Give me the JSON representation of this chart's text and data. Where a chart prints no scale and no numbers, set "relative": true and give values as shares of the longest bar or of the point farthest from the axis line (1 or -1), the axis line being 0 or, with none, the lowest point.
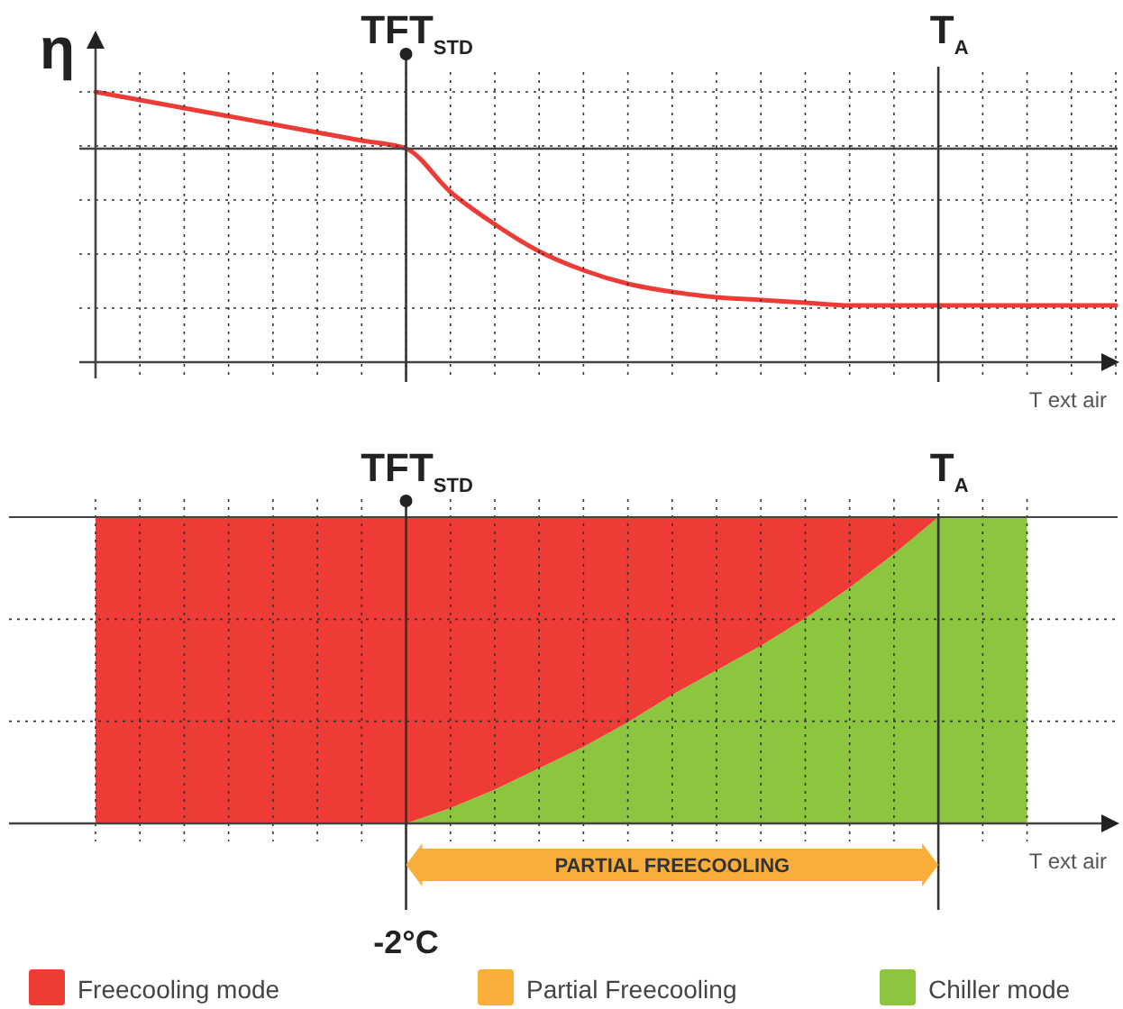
{
  "chart_data": [
    {
      "type": "line",
      "ylabel": "η",
      "xlabel": "T ext air",
      "relative": true,
      "grid": true,
      "categories": [
        null,
        null,
        null,
        null,
        null,
        null,
        null,
        null,
        null,
        null,
        null,
        null,
        null,
        null,
        null,
        null,
        null,
        null,
        null,
        null,
        null,
        null,
        null,
        null
      ],
      "series": [
        {
          "color": "#ee3b36",
          "values": [
            1,
            0.97,
            0.94,
            0.91,
            0.88,
            0.85,
            0.82,
            0.79,
            0.63,
            0.51,
            0.41,
            0.34,
            0.29,
            0.26,
            0.24,
            0.23,
            0.22,
            0.21,
            0.21,
            0.21,
            0.21,
            0.21,
            0.21,
            0.21
          ]
        }
      ],
      "ref_lines": [
        {
          "axis": "y",
          "value": 0.79
        }
      ],
      "annotations": [
        "TFT$_{STD}$",
        "T$_{A}$"
      ]
    },
    {
      "type": "area",
      "stacked": true,
      "relative": true,
      "xlabel": "T ext air",
      "grid": true,
      "legend": "bottom",
      "categories": [
        null,
        null,
        null,
        null,
        null,
        null,
        null,
        null,
        null,
        null,
        null,
        null,
        null,
        null,
        null,
        null,
        null,
        null,
        null,
        null,
        null,
        null
      ],
      "series": [
        {
          "name": "Chiller mode",
          "color": "#8cc63f",
          "values": [
            0,
            0,
            0,
            0,
            0,
            0,
            0,
            0,
            0.05,
            0.11,
            0.18,
            0.25,
            0.33,
            0.42,
            0.5,
            0.58,
            0.67,
            0.77,
            0.88,
            1,
            1,
            1
          ]
        },
        {
          "name": "Freecooling mode",
          "color": "#ee3b36",
          "values": [
            1,
            1,
            1,
            1,
            1,
            1,
            1,
            1,
            0.95,
            0.89,
            0.82,
            0.75,
            0.67,
            0.58,
            0.5,
            0.42,
            0.33,
            0.23,
            0.12,
            0,
            null,
            null
          ]
        }
      ],
      "annotations": [
        "TFT$_{STD}$",
        "T$_{A}$",
        "PARTIAL FREECOOLING",
        "-2°C",
        "Partial Freecooling"
      ]
    }
  ]
}
